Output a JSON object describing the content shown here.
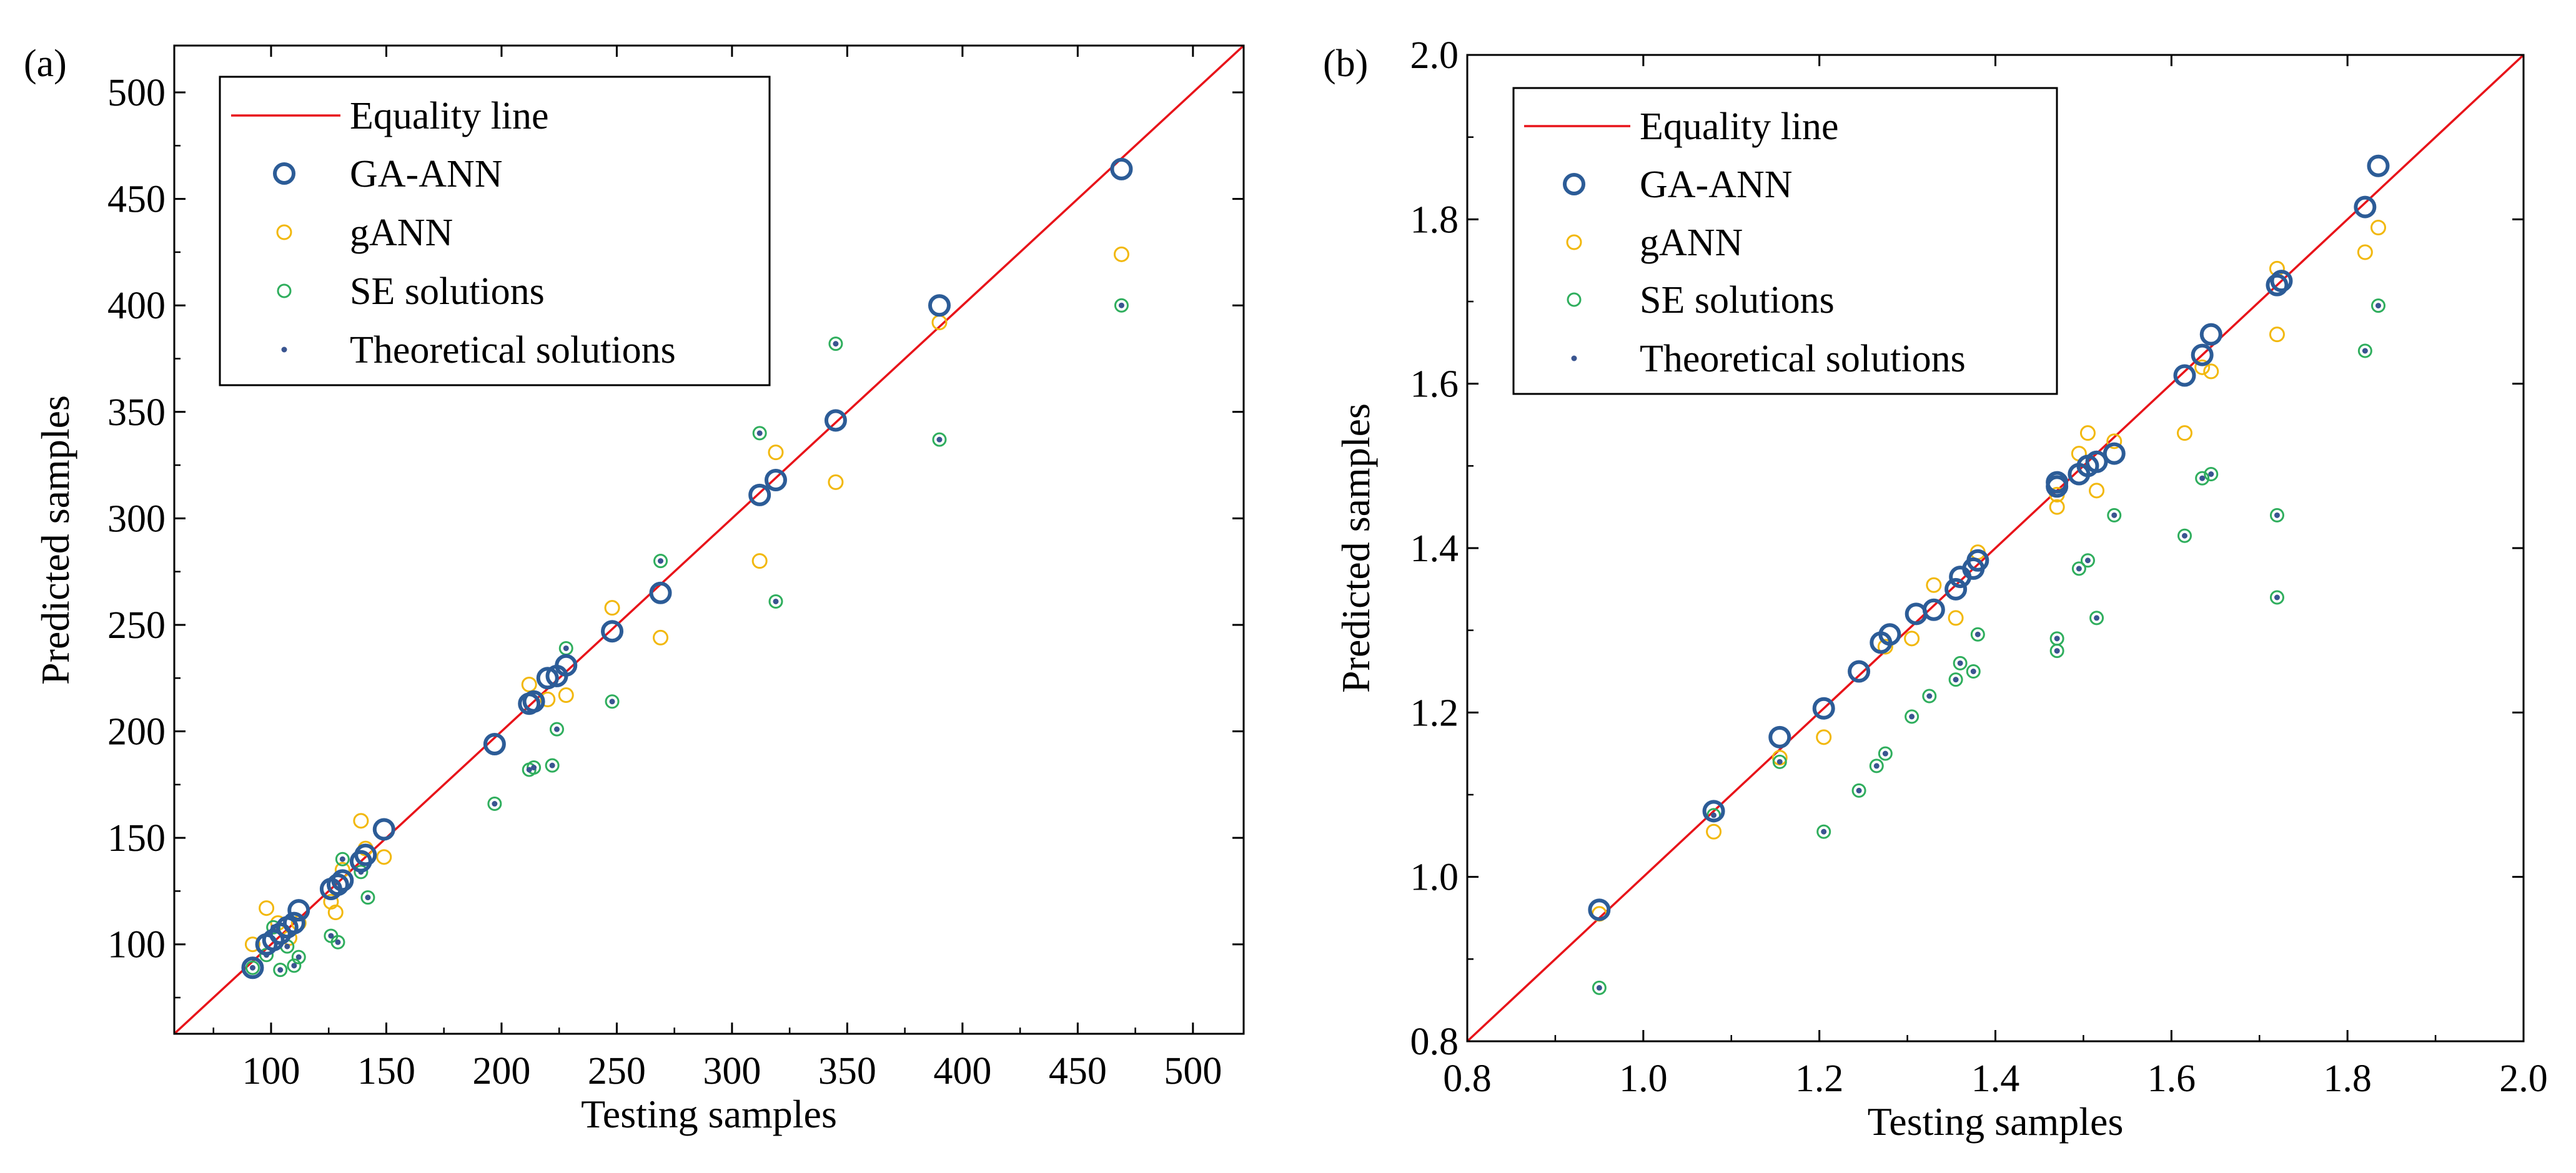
{
  "colors": {
    "equality_line": "#e8141a",
    "ga_ann": "#2c5c97",
    "gann": "#f2b80c",
    "se_ring": "#2fae5d",
    "theoretical_dot": "#3a5590",
    "axis": "#000000"
  },
  "chart_data": [
    {
      "panel": "(a)",
      "type": "scatter",
      "xlabel": "Testing samples",
      "ylabel": "Predicted samples",
      "xlim": [
        58,
        522
      ],
      "ylim": [
        58,
        522
      ],
      "xticks": [
        100,
        150,
        200,
        250,
        300,
        350,
        400,
        450,
        500
      ],
      "yticks": [
        100,
        150,
        200,
        250,
        300,
        350,
        400,
        450,
        500
      ],
      "legend": {
        "position": "top-left",
        "items": [
          {
            "key": "equality",
            "label": "Equality line"
          },
          {
            "key": "ga_ann",
            "label": "GA-ANN"
          },
          {
            "key": "gann",
            "label": "gANN"
          },
          {
            "key": "se",
            "label": "SE solutions"
          },
          {
            "key": "theoretical",
            "label": "Theoretical solutions"
          }
        ]
      },
      "series": [
        {
          "name": "GA-ANN",
          "key": "ga_ann",
          "points": [
            [
              92,
              89
            ],
            [
              98,
              100
            ],
            [
              101,
              102
            ],
            [
              104,
              105
            ],
            [
              107,
              108
            ],
            [
              110,
              110
            ],
            [
              112,
              116
            ],
            [
              126,
              126
            ],
            [
              129,
              128
            ],
            [
              131,
              130
            ],
            [
              139,
              139
            ],
            [
              141,
              142
            ],
            [
              149,
              154
            ],
            [
              197,
              194
            ],
            [
              212,
              213
            ],
            [
              214,
              214
            ],
            [
              220,
              225
            ],
            [
              224,
              226
            ],
            [
              228,
              231
            ],
            [
              248,
              247
            ],
            [
              269,
              265
            ],
            [
              312,
              311
            ],
            [
              319,
              318
            ],
            [
              345,
              346
            ],
            [
              390,
              400
            ],
            [
              469,
              464
            ]
          ]
        },
        {
          "name": "gANN",
          "key": "gann",
          "points": [
            [
              92,
              100
            ],
            [
              98,
              117
            ],
            [
              103,
              110
            ],
            [
              108,
              103
            ],
            [
              112,
              110
            ],
            [
              126,
              120
            ],
            [
              128,
              115
            ],
            [
              131,
              135
            ],
            [
              139,
              158
            ],
            [
              141,
              145
            ],
            [
              149,
              141
            ],
            [
              212,
              222
            ],
            [
              220,
              215
            ],
            [
              228,
              217
            ],
            [
              248,
              258
            ],
            [
              269,
              244
            ],
            [
              312,
              280
            ],
            [
              319,
              331
            ],
            [
              345,
              317
            ],
            [
              390,
              392
            ],
            [
              469,
              424
            ]
          ]
        },
        {
          "name": "SE solutions",
          "key": "se",
          "points": [
            [
              92,
              89
            ],
            [
              98,
              95
            ],
            [
              101,
              108
            ],
            [
              104,
              88
            ],
            [
              107,
              99
            ],
            [
              110,
              90
            ],
            [
              112,
              94
            ],
            [
              126,
              104
            ],
            [
              129,
              101
            ],
            [
              131,
              140
            ],
            [
              139,
              134
            ],
            [
              142,
              122
            ],
            [
              197,
              166
            ],
            [
              212,
              182
            ],
            [
              214,
              183
            ],
            [
              222,
              184
            ],
            [
              224,
              201
            ],
            [
              228,
              239
            ],
            [
              248,
              214
            ],
            [
              269,
              280
            ],
            [
              312,
              340
            ],
            [
              319,
              261
            ],
            [
              345,
              382
            ],
            [
              390,
              337
            ],
            [
              469,
              400
            ]
          ]
        },
        {
          "name": "Theoretical solutions",
          "key": "theoretical",
          "points": [
            [
              92,
              89
            ],
            [
              98,
              95
            ],
            [
              101,
              108
            ],
            [
              104,
              88
            ],
            [
              107,
              99
            ],
            [
              110,
              90
            ],
            [
              112,
              94
            ],
            [
              126,
              104
            ],
            [
              129,
              101
            ],
            [
              131,
              140
            ],
            [
              139,
              134
            ],
            [
              142,
              122
            ],
            [
              197,
              166
            ],
            [
              212,
              182
            ],
            [
              214,
              183
            ],
            [
              222,
              184
            ],
            [
              224,
              201
            ],
            [
              228,
              239
            ],
            [
              248,
              214
            ],
            [
              269,
              280
            ],
            [
              312,
              340
            ],
            [
              319,
              261
            ],
            [
              345,
              382
            ],
            [
              390,
              337
            ],
            [
              469,
              400
            ]
          ]
        }
      ]
    },
    {
      "panel": "(b)",
      "type": "scatter",
      "xlabel": "Testing samples",
      "ylabel": "Predicted samples",
      "xlim": [
        0.8,
        2.0
      ],
      "ylim": [
        0.8,
        2.0
      ],
      "xticks": [
        "0.8",
        "1.0",
        "1.2",
        "1.4",
        "1.6",
        "1.8",
        "2.0"
      ],
      "yticks": [
        "0.8",
        "1.0",
        "1.2",
        "1.4",
        "1.6",
        "1.8",
        "2.0"
      ],
      "legend": {
        "position": "top-left",
        "items": [
          {
            "key": "equality",
            "label": "Equality line"
          },
          {
            "key": "ga_ann",
            "label": "GA-ANN"
          },
          {
            "key": "gann",
            "label": "gANN"
          },
          {
            "key": "se",
            "label": "SE solutions"
          },
          {
            "key": "theoretical",
            "label": "Theoretical solutions"
          }
        ]
      },
      "series": [
        {
          "name": "GA-ANN",
          "key": "ga_ann",
          "points": [
            [
              0.95,
              0.96
            ],
            [
              1.08,
              1.08
            ],
            [
              1.155,
              1.17
            ],
            [
              1.205,
              1.205
            ],
            [
              1.245,
              1.25
            ],
            [
              1.27,
              1.285
            ],
            [
              1.28,
              1.295
            ],
            [
              1.31,
              1.32
            ],
            [
              1.33,
              1.325
            ],
            [
              1.355,
              1.35
            ],
            [
              1.36,
              1.365
            ],
            [
              1.375,
              1.375
            ],
            [
              1.38,
              1.385
            ],
            [
              1.47,
              1.475
            ],
            [
              1.47,
              1.48
            ],
            [
              1.495,
              1.49
            ],
            [
              1.505,
              1.5
            ],
            [
              1.515,
              1.505
            ],
            [
              1.535,
              1.515
            ],
            [
              1.615,
              1.61
            ],
            [
              1.635,
              1.635
            ],
            [
              1.645,
              1.66
            ],
            [
              1.72,
              1.72
            ],
            [
              1.725,
              1.725
            ],
            [
              1.82,
              1.815
            ],
            [
              1.835,
              1.865
            ]
          ]
        },
        {
          "name": "gANN",
          "key": "gann",
          "points": [
            [
              0.95,
              0.955
            ],
            [
              1.08,
              1.055
            ],
            [
              1.155,
              1.145
            ],
            [
              1.205,
              1.17
            ],
            [
              1.275,
              1.28
            ],
            [
              1.305,
              1.29
            ],
            [
              1.33,
              1.355
            ],
            [
              1.355,
              1.315
            ],
            [
              1.38,
              1.395
            ],
            [
              1.47,
              1.45
            ],
            [
              1.47,
              1.465
            ],
            [
              1.495,
              1.515
            ],
            [
              1.505,
              1.54
            ],
            [
              1.515,
              1.47
            ],
            [
              1.535,
              1.53
            ],
            [
              1.615,
              1.54
            ],
            [
              1.635,
              1.62
            ],
            [
              1.645,
              1.615
            ],
            [
              1.72,
              1.66
            ],
            [
              1.72,
              1.74
            ],
            [
              1.82,
              1.76
            ],
            [
              1.835,
              1.79
            ]
          ]
        },
        {
          "name": "SE solutions",
          "key": "se",
          "points": [
            [
              0.95,
              0.865
            ],
            [
              1.08,
              1.075
            ],
            [
              1.155,
              1.14
            ],
            [
              1.205,
              1.055
            ],
            [
              1.245,
              1.105
            ],
            [
              1.265,
              1.135
            ],
            [
              1.275,
              1.15
            ],
            [
              1.305,
              1.195
            ],
            [
              1.325,
              1.22
            ],
            [
              1.355,
              1.24
            ],
            [
              1.36,
              1.26
            ],
            [
              1.375,
              1.25
            ],
            [
              1.38,
              1.295
            ],
            [
              1.47,
              1.275
            ],
            [
              1.47,
              1.29
            ],
            [
              1.495,
              1.375
            ],
            [
              1.505,
              1.385
            ],
            [
              1.515,
              1.315
            ],
            [
              1.535,
              1.44
            ],
            [
              1.615,
              1.415
            ],
            [
              1.635,
              1.485
            ],
            [
              1.645,
              1.49
            ],
            [
              1.72,
              1.34
            ],
            [
              1.72,
              1.44
            ],
            [
              1.82,
              1.64
            ],
            [
              1.835,
              1.695
            ]
          ]
        },
        {
          "name": "Theoretical solutions",
          "key": "theoretical",
          "points": [
            [
              0.95,
              0.865
            ],
            [
              1.08,
              1.075
            ],
            [
              1.155,
              1.14
            ],
            [
              1.205,
              1.055
            ],
            [
              1.245,
              1.105
            ],
            [
              1.265,
              1.135
            ],
            [
              1.275,
              1.15
            ],
            [
              1.305,
              1.195
            ],
            [
              1.325,
              1.22
            ],
            [
              1.355,
              1.24
            ],
            [
              1.36,
              1.26
            ],
            [
              1.375,
              1.25
            ],
            [
              1.38,
              1.295
            ],
            [
              1.47,
              1.275
            ],
            [
              1.47,
              1.29
            ],
            [
              1.495,
              1.375
            ],
            [
              1.505,
              1.385
            ],
            [
              1.515,
              1.315
            ],
            [
              1.535,
              1.44
            ],
            [
              1.615,
              1.415
            ],
            [
              1.635,
              1.485
            ],
            [
              1.645,
              1.49
            ],
            [
              1.72,
              1.34
            ],
            [
              1.72,
              1.44
            ],
            [
              1.82,
              1.64
            ],
            [
              1.835,
              1.695
            ]
          ]
        }
      ]
    }
  ]
}
